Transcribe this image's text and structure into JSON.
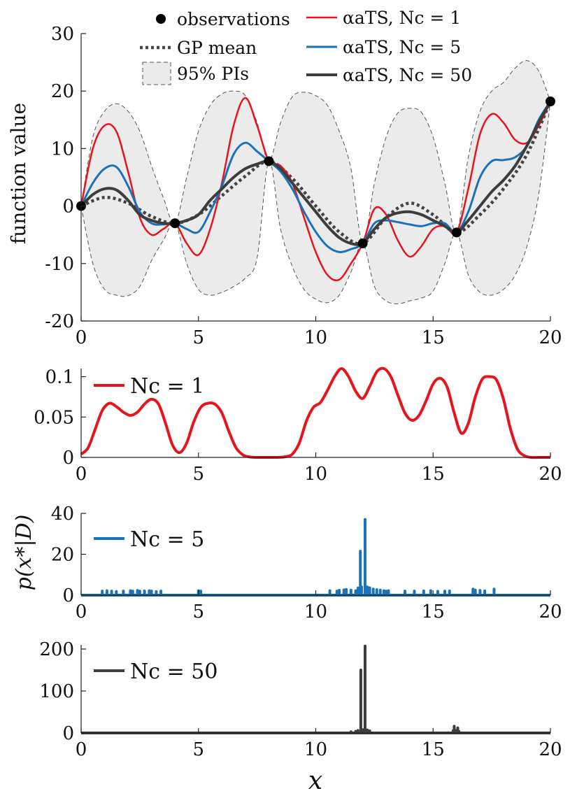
{
  "chart_data": [
    {
      "type": "line",
      "panel": "top",
      "ylabel": "function value",
      "xlabel": "",
      "xlim": [
        0,
        20
      ],
      "ylim": [
        -20,
        30
      ],
      "xticks": [
        "0",
        "5",
        "10",
        "15",
        "20"
      ],
      "yticks": [
        "30",
        "20",
        "10",
        "0",
        "-10",
        "-20"
      ],
      "legend_placement": "top",
      "legend": {
        "observations": "observations",
        "gp_mean": "GP mean",
        "pi": "95% PIs",
        "atsNc1": "αaTS, Nc = 1",
        "atsNc5": "αaTS, Nc = 5",
        "atsNc50": "αaTS, Nc = 50"
      },
      "observations": {
        "x": [
          0,
          4,
          8,
          12,
          16,
          20
        ],
        "y": [
          0,
          -3,
          7.8,
          -6.5,
          -4.6,
          18.2
        ]
      },
      "gp_mean": {
        "x": [
          0,
          1,
          2,
          3,
          4,
          5,
          6,
          7,
          8,
          9,
          10,
          11,
          12,
          13,
          14,
          15,
          16,
          17,
          18,
          19,
          20
        ],
        "y": [
          0,
          1.5,
          0.5,
          -1.8,
          -3,
          -1.5,
          1.8,
          5.2,
          7.8,
          4.8,
          0,
          -4.5,
          -6.5,
          -2,
          0.5,
          -1.5,
          -4.6,
          -1.5,
          3,
          9,
          18.2
        ]
      },
      "pi_upper": {
        "x": [
          0,
          0.5,
          1,
          1.5,
          2,
          2.5,
          3,
          3.5,
          4,
          4.5,
          5,
          5.5,
          6,
          6.5,
          7,
          7.5,
          8,
          8.5,
          9,
          9.5,
          10,
          10.5,
          11,
          11.5,
          12,
          12.5,
          13,
          13.5,
          14,
          14.5,
          15,
          15.5,
          16,
          16.5,
          17,
          17.5,
          18,
          18.5,
          19,
          19.5,
          20
        ],
        "y": [
          0,
          12,
          16.5,
          17.8,
          16.5,
          13,
          7,
          1.5,
          -3,
          5,
          13,
          17.5,
          19.5,
          20,
          19.2,
          14.5,
          7.8,
          14.5,
          19,
          19.8,
          19.2,
          17.5,
          13,
          6.5,
          -6.5,
          4,
          12,
          16.2,
          17,
          16.3,
          12,
          4,
          -4.6,
          8.5,
          16.5,
          20,
          21.5,
          24,
          25.3,
          23.5,
          18.2
        ]
      },
      "pi_lower": {
        "x": [
          0,
          0.5,
          1,
          1.5,
          2,
          2.5,
          3,
          3.5,
          4,
          4.5,
          5,
          5.5,
          6,
          6.5,
          7,
          7.5,
          8,
          8.5,
          9,
          9.5,
          10,
          10.5,
          11,
          11.5,
          12,
          12.5,
          13,
          13.5,
          14,
          14.5,
          15,
          15.5,
          16,
          16.5,
          17,
          17.5,
          18,
          18.5,
          19,
          19.5,
          20
        ],
        "y": [
          0,
          -10,
          -14.5,
          -15.5,
          -15.6,
          -14,
          -9.5,
          -6,
          -3,
          -10,
          -14.5,
          -15.5,
          -15,
          -14,
          -12.5,
          -9,
          7.8,
          -4,
          -10.5,
          -14.5,
          -16.2,
          -16.8,
          -15.5,
          -11.5,
          -6.5,
          -14,
          -16.5,
          -17,
          -16.5,
          -16,
          -14.8,
          -10,
          -4.6,
          -12,
          -15,
          -15.5,
          -14.5,
          -12,
          -7,
          2,
          18.2
        ]
      },
      "series": [
        {
          "name": "αaTS, Nc = 1",
          "color": "#e8141c",
          "x": [
            0,
            0.5,
            1,
            1.5,
            2,
            2.5,
            3,
            3.5,
            4,
            4.5,
            5,
            5.5,
            6,
            6.5,
            7,
            7.5,
            8,
            8.5,
            9,
            9.5,
            10,
            10.5,
            11,
            11.5,
            12,
            12.5,
            13,
            13.5,
            14,
            14.5,
            15,
            15.5,
            16,
            16.5,
            17,
            17.5,
            18,
            18.5,
            19,
            19.5,
            20
          ],
          "y": [
            0,
            10,
            14,
            13,
            6,
            -2,
            -5,
            -4,
            -3,
            -6.5,
            -8.5,
            -4,
            4,
            14,
            18.8,
            14,
            7.8,
            7,
            4,
            -2,
            -8,
            -12,
            -12.8,
            -10,
            -6.5,
            -0.5,
            -1.5,
            -6,
            -8.8,
            -7,
            -4,
            -3.5,
            -4.6,
            3,
            12.5,
            16,
            14.5,
            11.5,
            11,
            14,
            18.2
          ]
        },
        {
          "name": "αaTS, Nc = 5",
          "color": "#1a72bb",
          "x": [
            0,
            0.5,
            1,
            1.5,
            2,
            2.5,
            3,
            3.5,
            4,
            4.5,
            5,
            5.5,
            6,
            6.5,
            7,
            7.5,
            8,
            8.5,
            9,
            9.5,
            10,
            10.5,
            11,
            11.5,
            12,
            12.5,
            13,
            13.5,
            14,
            14.5,
            15,
            15.5,
            16,
            16.5,
            17,
            17.5,
            18,
            18.5,
            19,
            19.5,
            20
          ],
          "y": [
            0,
            4,
            6.5,
            6.8,
            3.5,
            -1,
            -3,
            -3.2,
            -3,
            -4,
            -4.5,
            -1,
            3.5,
            9,
            11,
            9.5,
            7.8,
            6,
            3,
            -1,
            -4.5,
            -7,
            -8,
            -7.5,
            -6.5,
            -3,
            -2.5,
            -2.8,
            -3.2,
            -3.5,
            -3,
            -3,
            -4.6,
            -1,
            5,
            7.8,
            8,
            8.5,
            10.5,
            15,
            18.2
          ]
        },
        {
          "name": "αaTS, Nc = 50",
          "color": "#3d3d3d",
          "x": [
            0,
            0.5,
            1,
            1.5,
            2,
            2.5,
            3,
            3.5,
            4,
            4.5,
            5,
            5.5,
            6,
            6.5,
            7,
            7.5,
            8,
            8.5,
            9,
            9.5,
            10,
            10.5,
            11,
            11.5,
            12,
            12.5,
            13,
            13.5,
            14,
            14.5,
            15,
            15.5,
            16,
            16.5,
            17,
            17.5,
            18,
            18.5,
            19,
            19.5,
            20
          ],
          "y": [
            0,
            2,
            3,
            2.8,
            1,
            -1.5,
            -2.5,
            -3,
            -3,
            -2.5,
            -1.5,
            1,
            3,
            5,
            6.5,
            7.3,
            7.8,
            6.5,
            4,
            1.5,
            -1,
            -3.5,
            -5.5,
            -6.5,
            -6.5,
            -4,
            -2,
            -1.2,
            -1,
            -1.5,
            -2.5,
            -3.5,
            -4.6,
            -2.5,
            0,
            2.5,
            4.5,
            7,
            10.5,
            14.5,
            18.2
          ]
        }
      ]
    },
    {
      "type": "line",
      "panel": "nc1",
      "xlim": [
        0,
        20
      ],
      "ylim": [
        0,
        0.11
      ],
      "xticks": [
        "0",
        "5",
        "10",
        "15",
        "20"
      ],
      "yticks": [
        "0.1",
        "0.05",
        "0"
      ],
      "legend": "Nc = 1",
      "legend_placement": "top-left",
      "color": "#e8141c",
      "x": [
        0,
        0.3,
        0.6,
        0.9,
        1.2,
        1.5,
        1.8,
        2.1,
        2.4,
        2.7,
        3.0,
        3.3,
        3.6,
        3.9,
        4.2,
        4.5,
        4.8,
        5.1,
        5.4,
        5.7,
        6.0,
        6.3,
        6.6,
        6.9,
        7.2,
        7.5,
        7.8,
        8.1,
        8.4,
        8.7,
        9.0,
        9.3,
        9.6,
        9.9,
        10.2,
        10.5,
        10.8,
        11.1,
        11.4,
        11.7,
        12.0,
        12.3,
        12.6,
        12.9,
        13.2,
        13.5,
        13.8,
        14.1,
        14.4,
        14.7,
        15.0,
        15.3,
        15.6,
        15.9,
        16.2,
        16.5,
        16.8,
        17.1,
        17.4,
        17.7,
        18.0,
        18.3,
        18.6,
        18.9,
        19.2,
        19.5,
        19.8,
        20
      ],
      "y": [
        0.004,
        0.012,
        0.035,
        0.058,
        0.067,
        0.063,
        0.056,
        0.052,
        0.056,
        0.066,
        0.072,
        0.066,
        0.042,
        0.015,
        0.006,
        0.018,
        0.044,
        0.062,
        0.067,
        0.066,
        0.055,
        0.032,
        0.012,
        0.003,
        0.0005,
        0,
        0,
        0,
        0,
        0.0008,
        0.004,
        0.018,
        0.045,
        0.062,
        0.068,
        0.083,
        0.1,
        0.11,
        0.1,
        0.082,
        0.073,
        0.088,
        0.106,
        0.11,
        0.1,
        0.077,
        0.055,
        0.046,
        0.052,
        0.07,
        0.091,
        0.098,
        0.087,
        0.055,
        0.03,
        0.042,
        0.075,
        0.097,
        0.1,
        0.096,
        0.072,
        0.035,
        0.01,
        0.002,
        0,
        0,
        0,
        0
      ]
    },
    {
      "type": "line",
      "panel": "nc5",
      "xlim": [
        0,
        20
      ],
      "ylim": [
        0,
        40
      ],
      "xticks": [
        "0",
        "5",
        "10",
        "15",
        "20"
      ],
      "yticks": [
        "40",
        "20",
        "0"
      ],
      "ylabel": "p(x*|D)",
      "legend": "Nc = 5",
      "legend_placement": "top-left",
      "color": "#1a72bb",
      "spikes": {
        "x": [
          0.9,
          1.1,
          1.3,
          1.5,
          1.8,
          2.1,
          2.2,
          2.4,
          2.5,
          2.7,
          2.9,
          3.0,
          3.2,
          3.4,
          5.0,
          5.1,
          10.6,
          10.9,
          11.0,
          11.2,
          11.3,
          11.5,
          11.7,
          11.8,
          11.9,
          11.95,
          12.1,
          12.2,
          12.3,
          12.45,
          12.6,
          12.75,
          12.9,
          13.0,
          13.1,
          13.8,
          14.2,
          14.6,
          14.9,
          15.2,
          15.5,
          15.7,
          16.7,
          16.8,
          17.0,
          17.2,
          17.6
        ],
        "y": [
          2,
          2.2,
          2,
          1.8,
          2,
          2.2,
          2,
          2.3,
          2,
          2.1,
          2.2,
          2,
          1.8,
          2,
          2.2,
          2,
          2.2,
          2,
          2.4,
          2.6,
          2.8,
          2.5,
          2.2,
          3.5,
          21.5,
          4,
          37,
          4,
          3.6,
          3,
          2.7,
          2.5,
          2.2,
          2,
          2.2,
          2,
          2,
          2.1,
          2.2,
          1.9,
          2,
          2.1,
          3,
          2.5,
          2.3,
          2.1,
          3
        ]
      }
    },
    {
      "type": "line",
      "panel": "nc50",
      "xlim": [
        0,
        20
      ],
      "ylim": [
        0,
        210
      ],
      "xticks": [
        "0",
        "5",
        "10",
        "15",
        "20"
      ],
      "yticks": [
        "200",
        "100",
        "0"
      ],
      "xlabel": "x",
      "legend": "Nc = 50",
      "legend_placement": "top-left",
      "color": "#3d3d3d",
      "spikes": {
        "x": [
          11.5,
          11.7,
          11.8,
          11.92,
          12.0,
          12.1,
          12.2,
          12.3,
          15.85,
          15.9,
          16.0,
          16.05,
          16.1
        ],
        "y": [
          3,
          4,
          6,
          150,
          8,
          207,
          7,
          5,
          5,
          16,
          6,
          12,
          4
        ]
      }
    }
  ]
}
